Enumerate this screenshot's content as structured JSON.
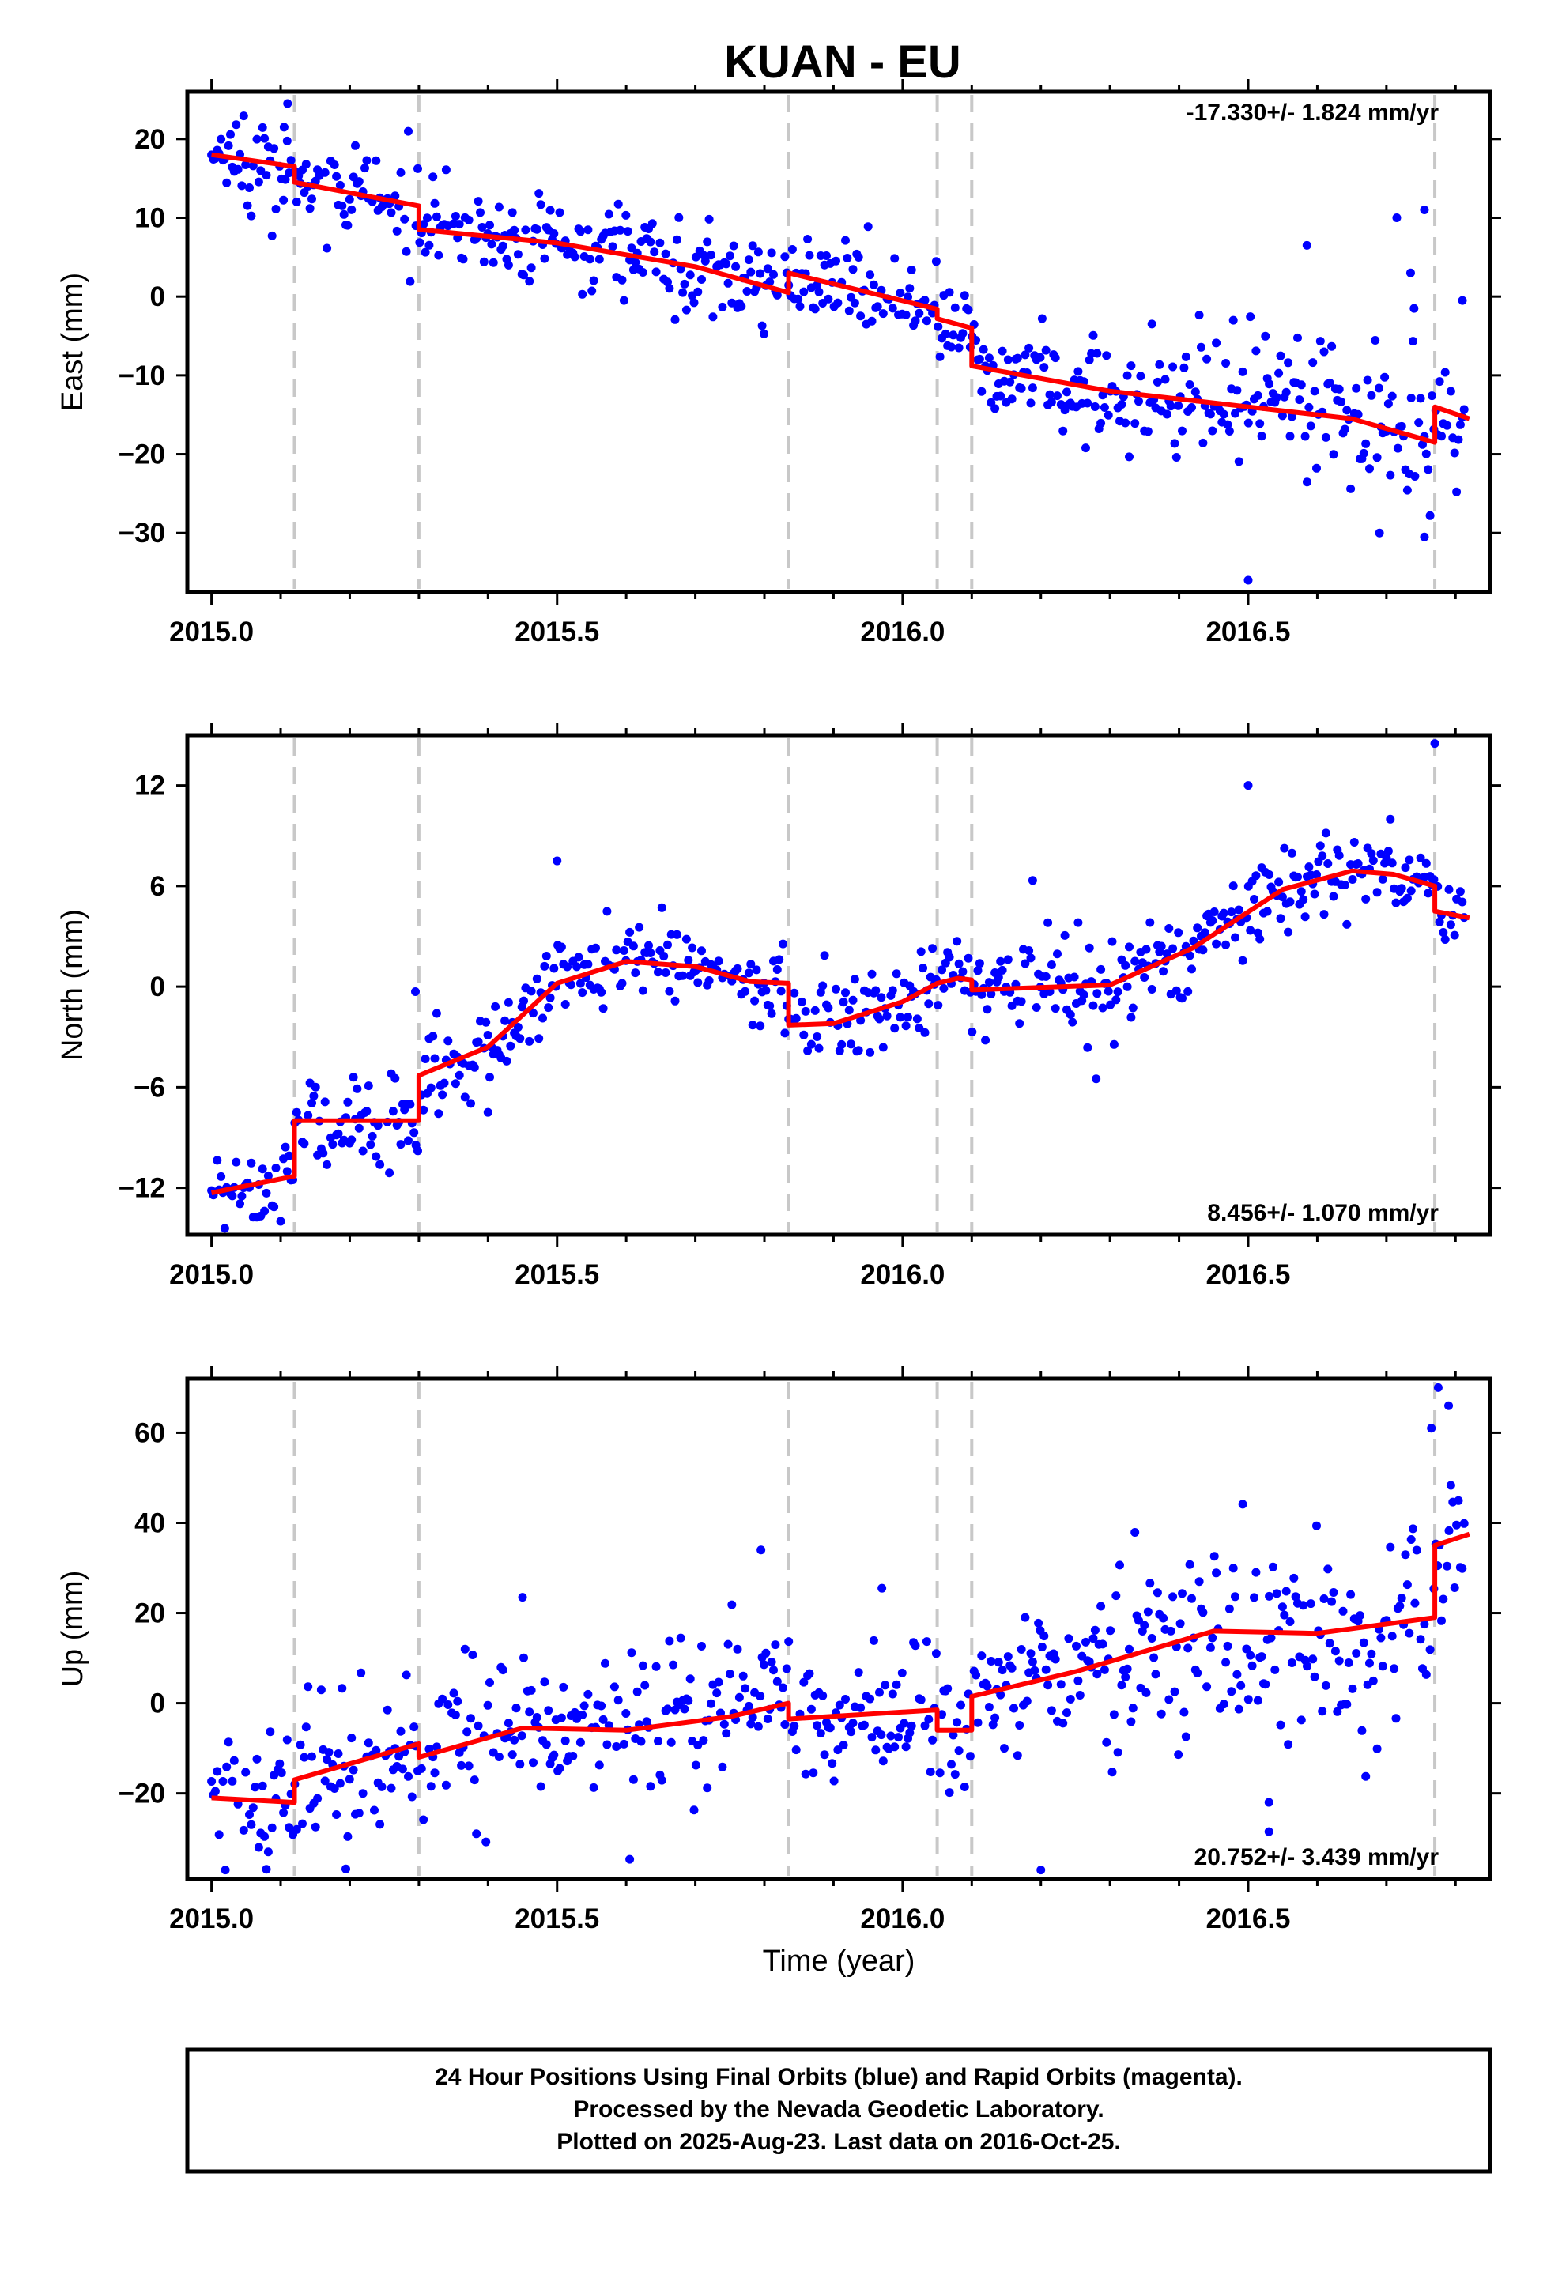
{
  "title": "KUAN - EU",
  "footer": {
    "lines": [
      "24 Hour Positions Using Final Orbits (blue) and Rapid Orbits (magenta).",
      "Processed by the Nevada Geodetic Laboratory.",
      "Plotted on 2025-Aug-23. Last data on 2016-Oct-25."
    ]
  },
  "colors": {
    "points": "#0000ff",
    "model": "#ff0000",
    "dashes": "#c8c8c8",
    "frame": "#000000"
  },
  "chart_data": [
    {
      "type": "scatter",
      "panel": "east",
      "ylabel": "East (mm)",
      "xlabel": "",
      "xlim": [
        2014.965,
        2016.85
      ],
      "ylim": [
        -37.5,
        26
      ],
      "xticks": [
        "2015.0",
        "2015.5",
        "2016.0",
        "2016.5"
      ],
      "yticks": [
        "20",
        "10",
        "0",
        "−10",
        "−20",
        "−30"
      ],
      "ytick_values": [
        20,
        10,
        0,
        -10,
        -20,
        -30
      ],
      "rate": "-17.330+/- 1.824 mm/yr",
      "rate_position": "top-right",
      "breaks": [
        2015.12,
        2015.3,
        2015.835,
        2016.05,
        2016.1,
        2016.77
      ],
      "noise": 2.8,
      "outliers": [
        [
          2015.11,
          24.5
        ],
        [
          2015.105,
          21.5
        ],
        [
          2016.5,
          -36
        ],
        [
          2016.69,
          -30
        ],
        [
          2016.755,
          -30.5
        ],
        [
          2016.755,
          11
        ],
        [
          2016.715,
          10
        ],
        [
          2016.735,
          3
        ],
        [
          2016.74,
          -1.5
        ],
        [
          2016.81,
          -0.5
        ],
        [
          2016.585,
          6.5
        ]
      ],
      "model": [
        [
          2015.0,
          18.0
        ],
        [
          2015.12,
          16.5
        ],
        [
          2015.12,
          14.5
        ],
        [
          2015.3,
          11.5
        ],
        [
          2015.3,
          8.5
        ],
        [
          2015.5,
          6.8
        ],
        [
          2015.7,
          3.8
        ],
        [
          2015.835,
          0.5
        ],
        [
          2015.835,
          3.0
        ],
        [
          2016.05,
          -1.6
        ],
        [
          2016.05,
          -2.8
        ],
        [
          2016.1,
          -4.0
        ],
        [
          2016.1,
          -8.8
        ],
        [
          2016.3,
          -12.0
        ],
        [
          2016.5,
          -14.0
        ],
        [
          2016.65,
          -15.5
        ],
        [
          2016.77,
          -18.5
        ],
        [
          2016.77,
          -14.0
        ],
        [
          2016.82,
          -15.5
        ]
      ]
    },
    {
      "type": "scatter",
      "panel": "north",
      "ylabel": "North (mm)",
      "xlabel": "",
      "xlim": [
        2014.965,
        2016.85
      ],
      "ylim": [
        -14.8,
        15
      ],
      "xticks": [
        "2015.0",
        "2015.5",
        "2016.0",
        "2016.5"
      ],
      "yticks": [
        "12",
        "6",
        "0",
        "−6",
        "−12"
      ],
      "ytick_values": [
        12,
        6,
        0,
        -6,
        -12
      ],
      "rate": "8.456+/- 1.070 mm/yr",
      "rate_position": "bottom-right",
      "breaks": [
        2015.12,
        2015.3,
        2015.835,
        2016.05,
        2016.1,
        2016.77
      ],
      "noise": 1.4,
      "outliers": [
        [
          2016.77,
          14.5
        ],
        [
          2015.295,
          -0.3
        ],
        [
          2015.5,
          7.5
        ],
        [
          2016.5,
          12.0
        ],
        [
          2016.28,
          -5.5
        ],
        [
          2015.1,
          -14
        ],
        [
          2015.4,
          -7.5
        ]
      ],
      "model": [
        [
          2015.0,
          -12.3
        ],
        [
          2015.12,
          -11.3
        ],
        [
          2015.12,
          -8.0
        ],
        [
          2015.3,
          -8.0
        ],
        [
          2015.3,
          -5.3
        ],
        [
          2015.4,
          -3.6
        ],
        [
          2015.5,
          0.2
        ],
        [
          2015.6,
          1.5
        ],
        [
          2015.7,
          1.2
        ],
        [
          2015.78,
          0.3
        ],
        [
          2015.835,
          0.2
        ],
        [
          2015.835,
          -2.3
        ],
        [
          2015.9,
          -2.2
        ],
        [
          2016.0,
          -0.9
        ],
        [
          2016.05,
          0.2
        ],
        [
          2016.08,
          0.5
        ],
        [
          2016.1,
          0.4
        ],
        [
          2016.1,
          -0.2
        ],
        [
          2016.3,
          0.1
        ],
        [
          2016.42,
          2.3
        ],
        [
          2016.55,
          5.8
        ],
        [
          2016.65,
          6.9
        ],
        [
          2016.71,
          6.7
        ],
        [
          2016.77,
          6.0
        ],
        [
          2016.77,
          4.5
        ],
        [
          2016.82,
          4.1
        ]
      ]
    },
    {
      "type": "scatter",
      "panel": "up",
      "ylabel": "Up (mm)",
      "xlabel": "Time (year)",
      "xlim": [
        2014.965,
        2016.85
      ],
      "ylim": [
        -39,
        72
      ],
      "xticks": [
        "2015.0",
        "2015.5",
        "2016.0",
        "2016.5"
      ],
      "yticks": [
        "60",
        "40",
        "20",
        "0",
        "−20"
      ],
      "ytick_values": [
        60,
        40,
        20,
        0,
        -20
      ],
      "rate": "20.752+/- 3.439 mm/yr",
      "rate_position": "bottom-right",
      "breaks": [
        2015.12,
        2015.3,
        2015.835,
        2016.05,
        2016.1,
        2016.77
      ],
      "noise": 8.5,
      "outliers": [
        [
          2016.775,
          70
        ],
        [
          2016.79,
          66
        ],
        [
          2016.765,
          61
        ],
        [
          2015.795,
          34
        ],
        [
          2015.97,
          25.5
        ],
        [
          2015.45,
          23.5
        ],
        [
          2016.53,
          -28.5
        ],
        [
          2016.53,
          -22
        ],
        [
          2016.2,
          -37
        ],
        [
          2015.02,
          -37
        ]
      ],
      "model": [
        [
          2015.0,
          -21.0
        ],
        [
          2015.12,
          -22.0
        ],
        [
          2015.12,
          -17.0
        ],
        [
          2015.3,
          -9.0
        ],
        [
          2015.3,
          -12.0
        ],
        [
          2015.45,
          -5.5
        ],
        [
          2015.6,
          -6.0
        ],
        [
          2015.75,
          -3.0
        ],
        [
          2015.835,
          0.0
        ],
        [
          2015.835,
          -3.5
        ],
        [
          2016.05,
          -1.5
        ],
        [
          2016.05,
          -6.0
        ],
        [
          2016.1,
          -6.0
        ],
        [
          2016.1,
          1.5
        ],
        [
          2016.25,
          7.0
        ],
        [
          2016.45,
          16.0
        ],
        [
          2016.6,
          15.5
        ],
        [
          2016.77,
          19.0
        ],
        [
          2016.77,
          35.0
        ],
        [
          2016.82,
          37.5
        ]
      ]
    }
  ]
}
